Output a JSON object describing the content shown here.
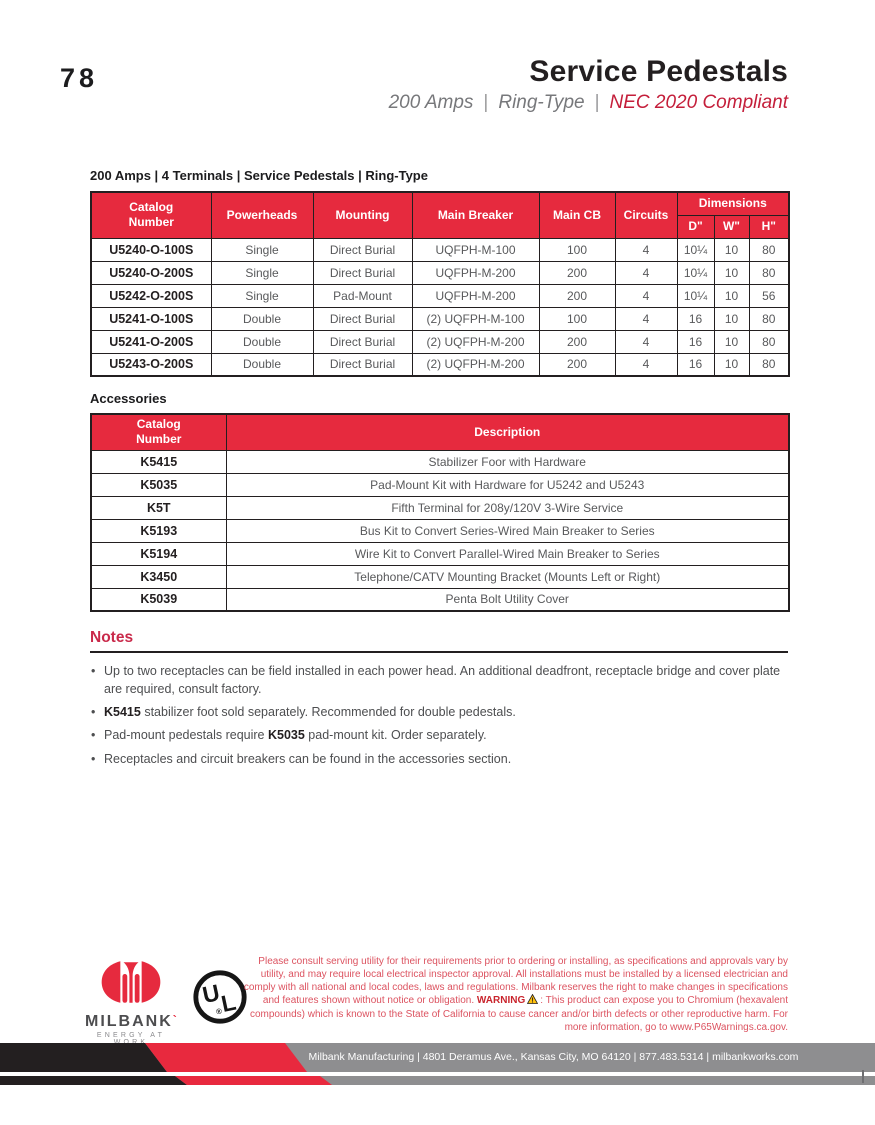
{
  "colors": {
    "table_header_red": "#E62A3E",
    "accent_red": "#C9294A",
    "subtitle_red": "#C41E3A",
    "disclaimer_red": "#DC5360",
    "footer_gray": "#8E8E90",
    "footer_black": "#231F20"
  },
  "page": {
    "number": "78"
  },
  "header": {
    "title": "Service Pedestals",
    "subtitle_parts": [
      "200 Amps",
      "Ring-Type",
      "NEC 2020 Compliant"
    ]
  },
  "main_table": {
    "title": "200 Amps  |  4 Terminals  |  Service Pedestals  |  Ring-Type",
    "columns": [
      "Catalog\nNumber",
      "Powerheads",
      "Mounting",
      "Main Breaker",
      "Main CB",
      "Circuits"
    ],
    "dimensions_header": "Dimensions",
    "dimension_columns": [
      "D\"",
      "W\"",
      "H\""
    ],
    "rows": [
      [
        "U5240-O-100S",
        "Single",
        "Direct Burial",
        "UQFPH-M-100",
        "100",
        "4",
        "10¼",
        "10",
        "80"
      ],
      [
        "U5240-O-200S",
        "Single",
        "Direct Burial",
        "UQFPH-M-200",
        "200",
        "4",
        "10¼",
        "10",
        "80"
      ],
      [
        "U5242-O-200S",
        "Single",
        "Pad-Mount",
        "UQFPH-M-200",
        "200",
        "4",
        "10¼",
        "10",
        "56"
      ],
      [
        "U5241-O-100S",
        "Double",
        "Direct Burial",
        "(2) UQFPH-M-100",
        "100",
        "4",
        "16",
        "10",
        "80"
      ],
      [
        "U5241-O-200S",
        "Double",
        "Direct Burial",
        "(2) UQFPH-M-200",
        "200",
        "4",
        "16",
        "10",
        "80"
      ],
      [
        "U5243-O-200S",
        "Double",
        "Direct Burial",
        "(2) UQFPH-M-200",
        "200",
        "4",
        "16",
        "10",
        "80"
      ]
    ]
  },
  "accessories": {
    "label": "Accessories",
    "columns": [
      "Catalog\nNumber",
      "Description"
    ],
    "rows": [
      {
        "number": "K5415",
        "description": "Stabilizer Foor with Hardware"
      },
      {
        "number": "K5035",
        "description": "Pad-Mount Kit with Hardware for U5242 and U5243"
      },
      {
        "number": "K5T",
        "description": "Fifth Terminal for 208y/120V 3-Wire Service"
      },
      {
        "number": "K5193",
        "description": "Bus Kit to Convert Series-Wired Main Breaker to Series"
      },
      {
        "number": "K5194",
        "description": "Wire Kit to Convert Parallel-Wired Main Breaker to Series"
      },
      {
        "number": "K3450",
        "description": "Telephone/CATV Mounting Bracket (Mounts Left or Right)"
      },
      {
        "number": "K5039",
        "description": "Penta Bolt Utility Cover"
      }
    ]
  },
  "notes": {
    "heading": "Notes",
    "items": [
      {
        "segments": [
          {
            "text": "Up to two receptacles can be field installed in each power head. An additional deadfront, receptacle bridge and cover plate are required, consult factory.",
            "bold": false
          }
        ]
      },
      {
        "segments": [
          {
            "text": "K5415",
            "bold": true
          },
          {
            "text": " stabilizer foot sold separately. Recommended for double pedestals.",
            "bold": false
          }
        ]
      },
      {
        "segments": [
          {
            "text": "Pad-mount pedestals require ",
            "bold": false
          },
          {
            "text": "K5035",
            "bold": true
          },
          {
            "text": " pad-mount kit. Order separately.",
            "bold": false
          }
        ]
      },
      {
        "segments": [
          {
            "text": "Receptacles and circuit breakers can be found in the accessories section.",
            "bold": false
          }
        ]
      }
    ]
  },
  "footer": {
    "milbank_logo": {
      "word": "MILBANK",
      "tagline": "ENERGY AT WORK"
    },
    "ul_logo": {
      "letters": "UL",
      "registered": "®"
    },
    "disclaimer_segments": [
      {
        "text": "Please consult serving utility for their requirements prior to ordering or installing, as specifications and approvals vary by utility, and may require local electrical inspector approval. All installations must be installed by a licensed electrician and comply with all national and local codes, laws and regulations. Milbank reserves the right to make changes in specifications and features shown without notice or obligation. "
      },
      {
        "text": "WARNING",
        "bold": true
      },
      {
        "icon": "warning-triangle-icon"
      },
      {
        "text": ": This product can expose you to Chromium (hexavalent compounds) which is known to the State of California to cause cancer and/or birth defects or other reproductive harm. For more information, go to www.P65Warnings.ca.gov."
      }
    ],
    "contact_line": "Milbank Manufacturing  |  4801 Deramus Ave., Kansas City, MO 64120  |  877.483.5314  |  milbankworks.com"
  }
}
